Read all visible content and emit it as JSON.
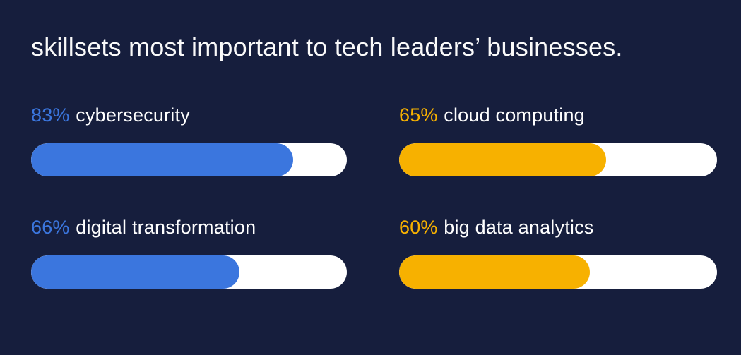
{
  "title": "skillsets most important to tech leaders’ businesses.",
  "colors": {
    "background": "#161E3D",
    "blue": "#3B76DE",
    "yellow": "#F7B100",
    "bar_track": "#FFFFFF",
    "title_text": "#FAFAFA",
    "label_text": "#FFFFFF"
  },
  "chart_data": {
    "type": "bar",
    "orientation": "horizontal",
    "layout": "2x2-grid",
    "title": "skillsets most important to tech leaders’ businesses.",
    "unit": "%",
    "xlim": [
      0,
      100
    ],
    "categories": [
      "cybersecurity",
      "cloud computing",
      "digital transformation",
      "big data analytics"
    ],
    "values": [
      83,
      65,
      66,
      60
    ],
    "bar_colors": [
      "#3B76DE",
      "#F7B100",
      "#3B76DE",
      "#F7B100"
    ],
    "track_color": "#FFFFFF",
    "value_label_format": "{value}% {category}",
    "grid": false,
    "legend": false
  }
}
